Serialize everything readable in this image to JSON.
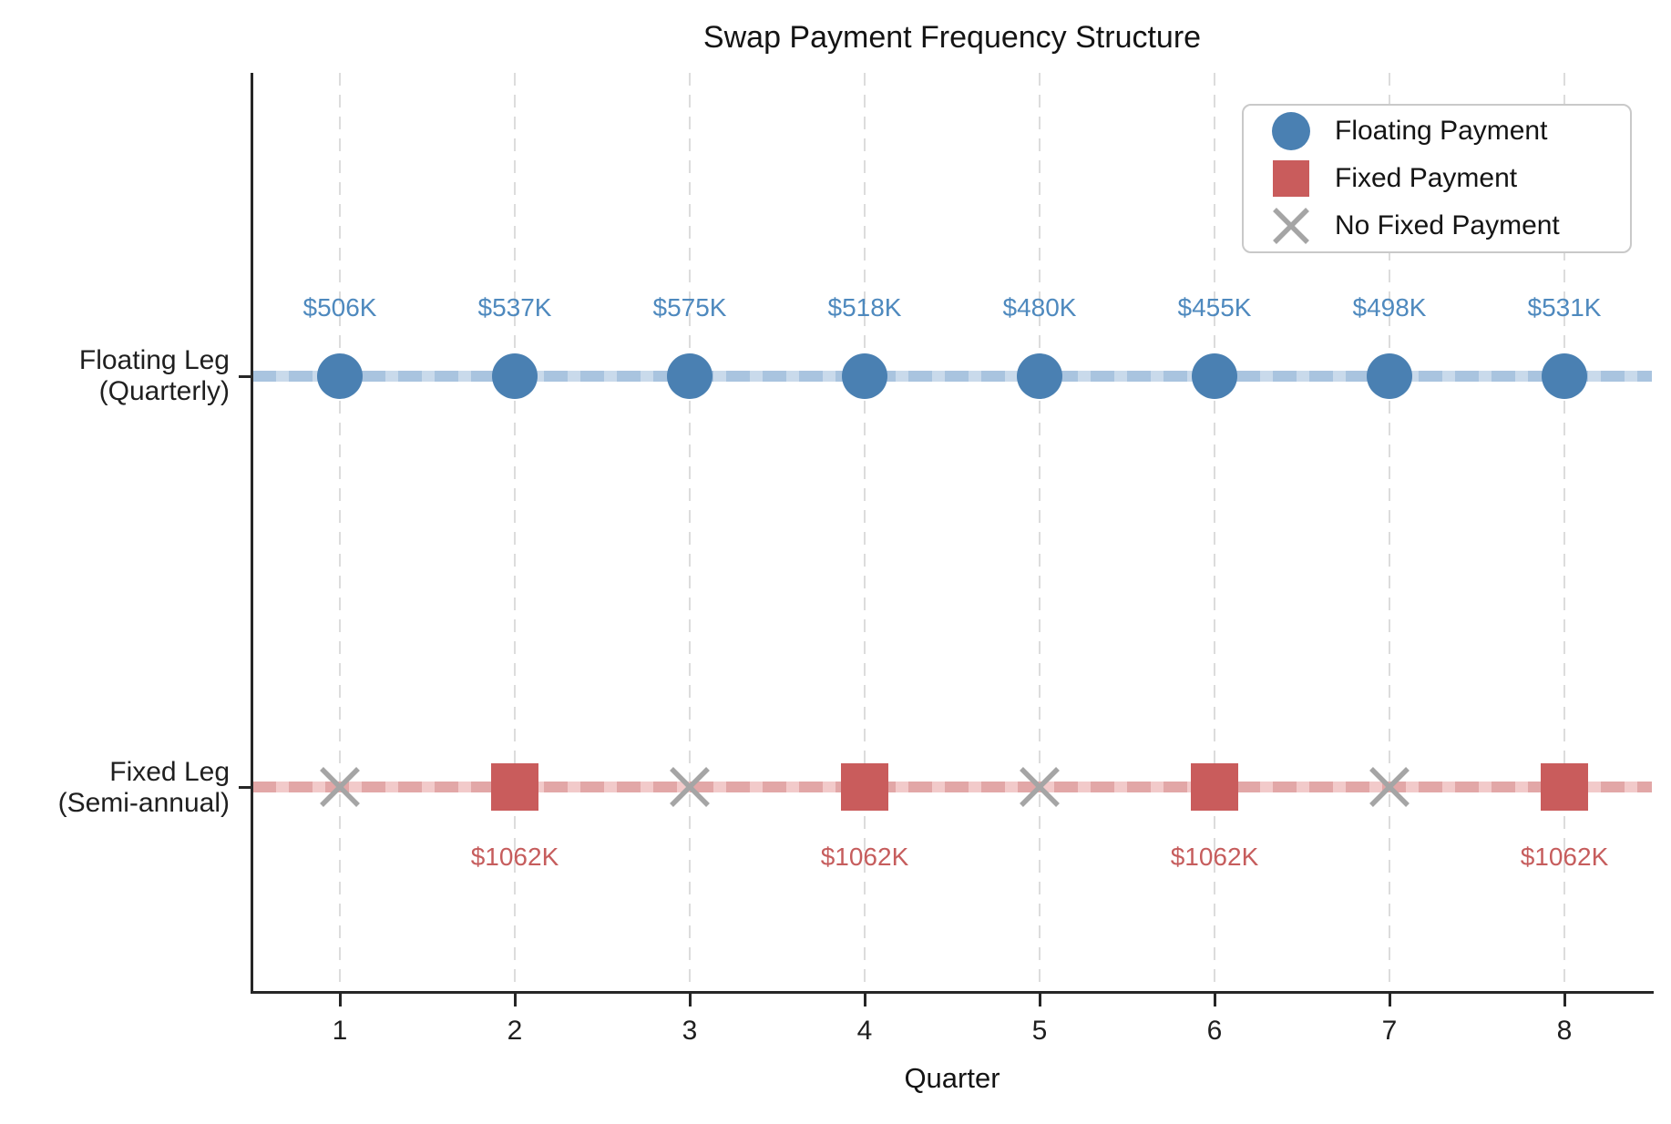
{
  "title": "Swap Payment Frequency Structure",
  "x_axis": {
    "title": "Quarter",
    "ticks": [
      "1",
      "2",
      "3",
      "4",
      "5",
      "6",
      "7",
      "8"
    ]
  },
  "y_axis": {
    "rows": [
      {
        "label_line1": "Floating Leg",
        "label_line2": "(Quarterly)"
      },
      {
        "label_line1": "Fixed Leg",
        "label_line2": "(Semi-annual)"
      }
    ]
  },
  "legend": {
    "items": [
      {
        "label": "Floating Payment",
        "marker": "circle"
      },
      {
        "label": "Fixed Payment",
        "marker": "square"
      },
      {
        "label": "No Fixed Payment",
        "marker": "x"
      }
    ]
  },
  "colors": {
    "floating": "#4A80B2",
    "fixed": "#C95C5C",
    "no_payment": "#A5A5A5",
    "floating_label": "#4E89BE",
    "fixed_label": "#C65D5D",
    "grid": "#DCDCDC",
    "axis": "#262626"
  },
  "chart_data": {
    "type": "scatter",
    "title": "Swap Payment Frequency Structure",
    "xlabel": "Quarter",
    "x_ticks": [
      1,
      2,
      3,
      4,
      5,
      6,
      7,
      8
    ],
    "x_range": [
      0.5,
      8.5
    ],
    "grid": "vertical-dashed",
    "legend_position": "upper right",
    "rows": [
      "Floating Leg (Quarterly)",
      "Fixed Leg (Semi-annual)"
    ],
    "series": [
      {
        "name": "Floating Payment",
        "row": "Floating Leg (Quarterly)",
        "marker": "circle",
        "color": "#4A80B2",
        "quarters": [
          1,
          2,
          3,
          4,
          5,
          6,
          7,
          8
        ],
        "payments_usd_thousands": [
          506,
          537,
          575,
          518,
          480,
          455,
          498,
          531
        ],
        "labels": [
          "$506K",
          "$537K",
          "$575K",
          "$518K",
          "$480K",
          "$455K",
          "$498K",
          "$531K"
        ],
        "label_position": "above"
      },
      {
        "name": "Fixed Payment",
        "row": "Fixed Leg (Semi-annual)",
        "marker": "square",
        "color": "#C95C5C",
        "quarters": [
          2,
          4,
          6,
          8
        ],
        "payments_usd_thousands": [
          1062,
          1062,
          1062,
          1062
        ],
        "labels": [
          "$1062K",
          "$1062K",
          "$1062K",
          "$1062K"
        ],
        "label_position": "below"
      },
      {
        "name": "No Fixed Payment",
        "row": "Fixed Leg (Semi-annual)",
        "marker": "x",
        "color": "#A5A5A5",
        "quarters": [
          1,
          3,
          5,
          7
        ]
      }
    ]
  }
}
